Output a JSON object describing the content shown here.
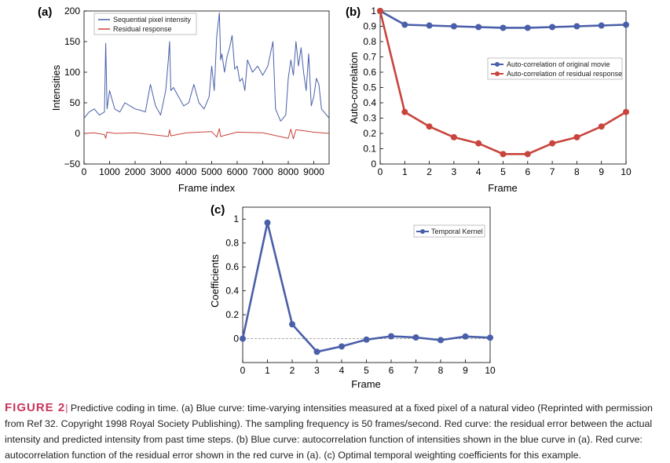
{
  "colors": {
    "blue": "#4a5fa9",
    "red": "#c8443c",
    "caption_accent": "#c8365a"
  },
  "chart_data": [
    {
      "panel": "(a)",
      "type": "line",
      "xlabel": "Frame index",
      "ylabel": "Intensities",
      "xlim": [
        0,
        9600
      ],
      "ylim": [
        -50,
        200
      ],
      "xticks": [
        0,
        1000,
        2000,
        3000,
        4000,
        5000,
        6000,
        7000,
        8000,
        9000
      ],
      "yticks": [
        -50,
        0,
        50,
        100,
        150,
        200
      ],
      "legend_position": "top-left",
      "series": [
        {
          "name": "Sequential pixel intensity",
          "color": "#4a5fa9",
          "x": [
            0,
            200,
            400,
            600,
            800,
            850,
            900,
            1000,
            1200,
            1400,
            1600,
            1800,
            2000,
            2200,
            2400,
            2600,
            2800,
            3000,
            3200,
            3300,
            3350,
            3400,
            3500,
            3700,
            3900,
            4100,
            4300,
            4500,
            4700,
            4900,
            5000,
            5100,
            5200,
            5300,
            5350,
            5400,
            5500,
            5600,
            5700,
            5800,
            5900,
            6000,
            6100,
            6200,
            6300,
            6400,
            6600,
            6800,
            7000,
            7200,
            7400,
            7500,
            7700,
            7900,
            8000,
            8100,
            8200,
            8300,
            8400,
            8500,
            8600,
            8700,
            8800,
            8900,
            9000,
            9100,
            9200,
            9300,
            9400,
            9600
          ],
          "values": [
            25,
            35,
            40,
            30,
            35,
            147,
            40,
            70,
            40,
            35,
            50,
            45,
            40,
            38,
            35,
            80,
            45,
            30,
            70,
            120,
            150,
            70,
            75,
            60,
            45,
            50,
            80,
            50,
            40,
            60,
            110,
            70,
            160,
            197,
            120,
            130,
            100,
            125,
            140,
            160,
            105,
            110,
            85,
            90,
            70,
            120,
            100,
            110,
            95,
            110,
            150,
            40,
            20,
            30,
            90,
            120,
            95,
            150,
            110,
            140,
            100,
            70,
            130,
            45,
            60,
            90,
            80,
            40,
            35,
            25
          ]
        },
        {
          "name": "Residual response",
          "color": "#c8443c",
          "x": [
            0,
            400,
            800,
            850,
            900,
            1200,
            2000,
            3300,
            3350,
            3400,
            4000,
            5000,
            5200,
            5300,
            5350,
            6000,
            7000,
            8000,
            8100,
            8200,
            8300,
            9000,
            9600
          ],
          "values": [
            0,
            1,
            -2,
            -8,
            2,
            0,
            1,
            -5,
            6,
            -4,
            1,
            3,
            -6,
            8,
            -5,
            2,
            1,
            -8,
            7,
            -9,
            6,
            2,
            0
          ]
        }
      ]
    },
    {
      "panel": "(b)",
      "type": "line",
      "xlabel": "Frame",
      "ylabel": "Auto-correlation",
      "xlim": [
        0,
        10
      ],
      "ylim": [
        0,
        1
      ],
      "xticks": [
        0,
        1,
        2,
        3,
        4,
        5,
        6,
        7,
        8,
        9,
        10
      ],
      "yticks": [
        0,
        0.1,
        0.2,
        0.3,
        0.4,
        0.5,
        0.6,
        0.7,
        0.8,
        0.9,
        1
      ],
      "legend_position": "center-right",
      "x": [
        0,
        1,
        2,
        3,
        4,
        5,
        6,
        7,
        8,
        9,
        10
      ],
      "series": [
        {
          "name": "Auto-correlation of original movie",
          "color": "#4a5fa9",
          "values": [
            1.0,
            0.91,
            0.905,
            0.9,
            0.895,
            0.89,
            0.89,
            0.895,
            0.9,
            0.905,
            0.91
          ]
        },
        {
          "name": "Auto-correlation of residual response",
          "color": "#c8443c",
          "values": [
            1.0,
            0.34,
            0.245,
            0.175,
            0.135,
            0.065,
            0.065,
            0.135,
            0.175,
            0.245,
            0.34
          ]
        }
      ]
    },
    {
      "panel": "(c)",
      "type": "line",
      "xlabel": "Frame",
      "ylabel": "Coefficients",
      "xlim": [
        0,
        10
      ],
      "ylim": [
        -0.2,
        1.1
      ],
      "xticks": [
        0,
        1,
        2,
        3,
        4,
        5,
        6,
        7,
        8,
        9,
        10
      ],
      "yticks": [
        0,
        0.2,
        0.4,
        0.6,
        0.8,
        1
      ],
      "legend_position": "top-right",
      "x": [
        0,
        1,
        2,
        3,
        4,
        5,
        6,
        7,
        8,
        9,
        10
      ],
      "series": [
        {
          "name": "Temporal Kernel",
          "color": "#4a5fa9",
          "values": [
            0.0,
            0.97,
            0.12,
            -0.11,
            -0.065,
            -0.008,
            0.02,
            0.01,
            -0.012,
            0.018,
            0.008
          ]
        }
      ]
    }
  ],
  "caption": {
    "figure_label": "FIGURE 2",
    "separator": "|",
    "text": " Predictive coding in time. (a) Blue curve: time-varying intensities measured at a fixed pixel of a natural video (Reprinted with permission from Ref 32. Copyright 1998 Royal Society Publishing). The sampling frequency is 50 frames/second. Red curve: the residual error between the actual intensity and predicted intensity from past time steps. (b) Blue curve: autocorrelation function of intensities shown in the blue curve in (a). Red curve: autocorrelation function of the residual error shown in the red curve in (a). (c) Optimal temporal weighting coefficients for this example."
  }
}
